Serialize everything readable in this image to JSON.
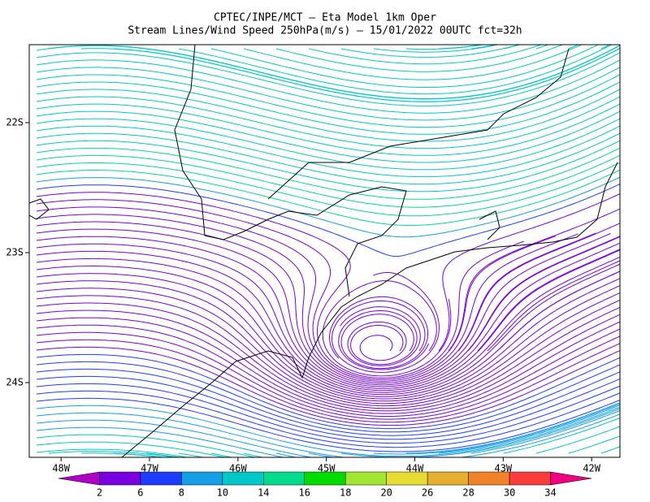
{
  "header": {
    "title": "CPTEC/INPE/MCT —  Eta Model 1km Oper",
    "subtitle": "Stream Lines/Wind Speed 250hPa(m/s) — 15/01/2022 00UTC fct=32h"
  },
  "map": {
    "xlim": [
      -48.36,
      -41.68
    ],
    "ylim": [
      -24.575,
      -21.4
    ],
    "xticks": [
      {
        "value": -48,
        "label": "48W"
      },
      {
        "value": -47,
        "label": "47W"
      },
      {
        "value": -46,
        "label": "46W"
      },
      {
        "value": -45,
        "label": "45W"
      },
      {
        "value": -44,
        "label": "44W"
      },
      {
        "value": -43,
        "label": "43W"
      },
      {
        "value": -42,
        "label": "42W"
      }
    ],
    "yticks": [
      {
        "value": -22,
        "label": "22S"
      },
      {
        "value": -23,
        "label": "23S"
      },
      {
        "value": -24,
        "label": "24S"
      }
    ]
  },
  "colorbar": {
    "ticks": [
      2,
      6,
      8,
      10,
      14,
      16,
      18,
      20,
      26,
      28,
      30,
      34
    ],
    "colors": [
      "#b000c8",
      "#7a00e0",
      "#1e3cff",
      "#14a0e6",
      "#00c8c8",
      "#00dc8c",
      "#00dc00",
      "#a0e632",
      "#e6dc32",
      "#e6af2d",
      "#f08228",
      "#fa3c3c",
      "#f00082"
    ]
  }
}
